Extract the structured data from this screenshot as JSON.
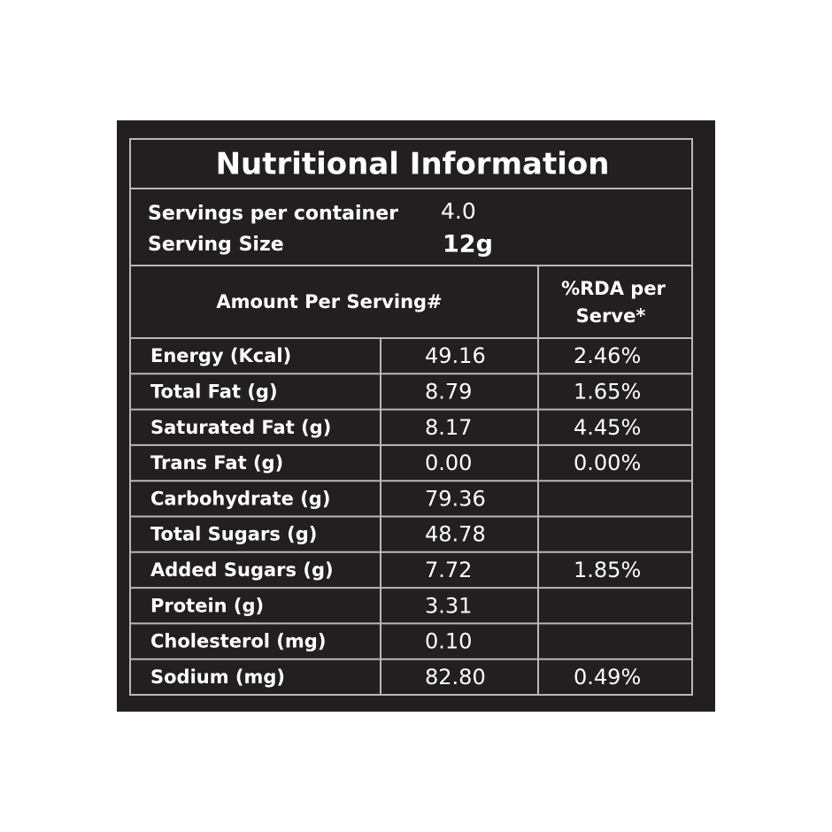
{
  "header": {
    "title": "Nutritional Information"
  },
  "servings": {
    "label": "Servings per container",
    "value": "4.0"
  },
  "serving_size": {
    "label": "Serving Size",
    "value": "12g"
  },
  "table": {
    "header": {
      "amount": "Amount Per Serving#",
      "rda": [
        "%RDA per",
        "Serve*"
      ]
    },
    "rows": [
      [
        "Energy (Kcal)",
        "49.16",
        "2.46%"
      ],
      [
        "Total Fat (g)",
        "8.79",
        "1.65%"
      ],
      [
        "Saturated Fat (g)",
        "8.17",
        "4.45%"
      ],
      [
        "Trans Fat (g)",
        "0.00",
        "0.00%"
      ],
      [
        "Carbohydrate (g)",
        "79.36",
        null
      ],
      [
        "Total Sugars (g)",
        "48.78",
        null
      ],
      [
        "Added Sugars (g)",
        "7.72",
        "1.85%"
      ],
      [
        "Protein (g)",
        "3.31",
        null
      ],
      [
        "Cholesterol (mg)",
        "0.10",
        null
      ],
      [
        "Sodium (mg)",
        "82.80",
        "0.49%"
      ]
    ]
  }
}
